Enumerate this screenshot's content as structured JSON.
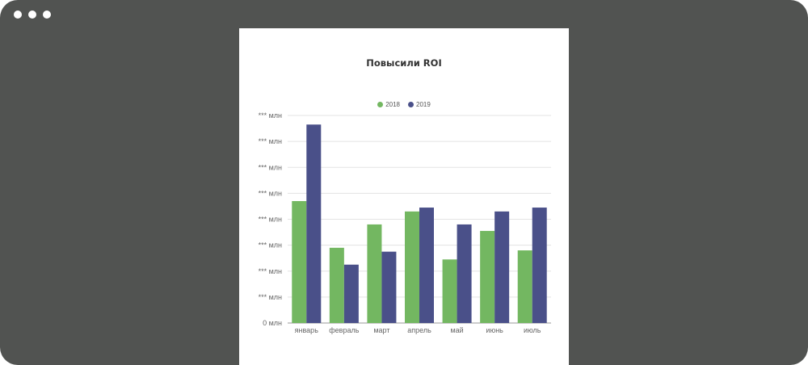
{
  "window": {
    "controls": [
      "dot",
      "dot",
      "dot"
    ]
  },
  "chart_data": {
    "type": "bar",
    "title": "Повысили ROI",
    "categories": [
      "январь",
      "февраль",
      "март",
      "апрель",
      "май",
      "июнь",
      "июль"
    ],
    "series": [
      {
        "name": "2018",
        "color": "#73b761",
        "values": [
          4.7,
          2.9,
          3.8,
          4.3,
          2.45,
          3.55,
          2.8
        ]
      },
      {
        "name": "2019",
        "color": "#4a5089",
        "values": [
          7.65,
          2.25,
          2.75,
          4.45,
          3.8,
          4.3,
          4.45
        ]
      }
    ],
    "ylim": [
      0,
      8
    ],
    "yticks": [
      "0 млн",
      "*** млн",
      "*** млн",
      "*** млн",
      "*** млн",
      "*** млн",
      "*** млн",
      "*** млн",
      "*** млн"
    ],
    "grid": true,
    "legend": "top-center",
    "xlabel": "",
    "ylabel": ""
  }
}
